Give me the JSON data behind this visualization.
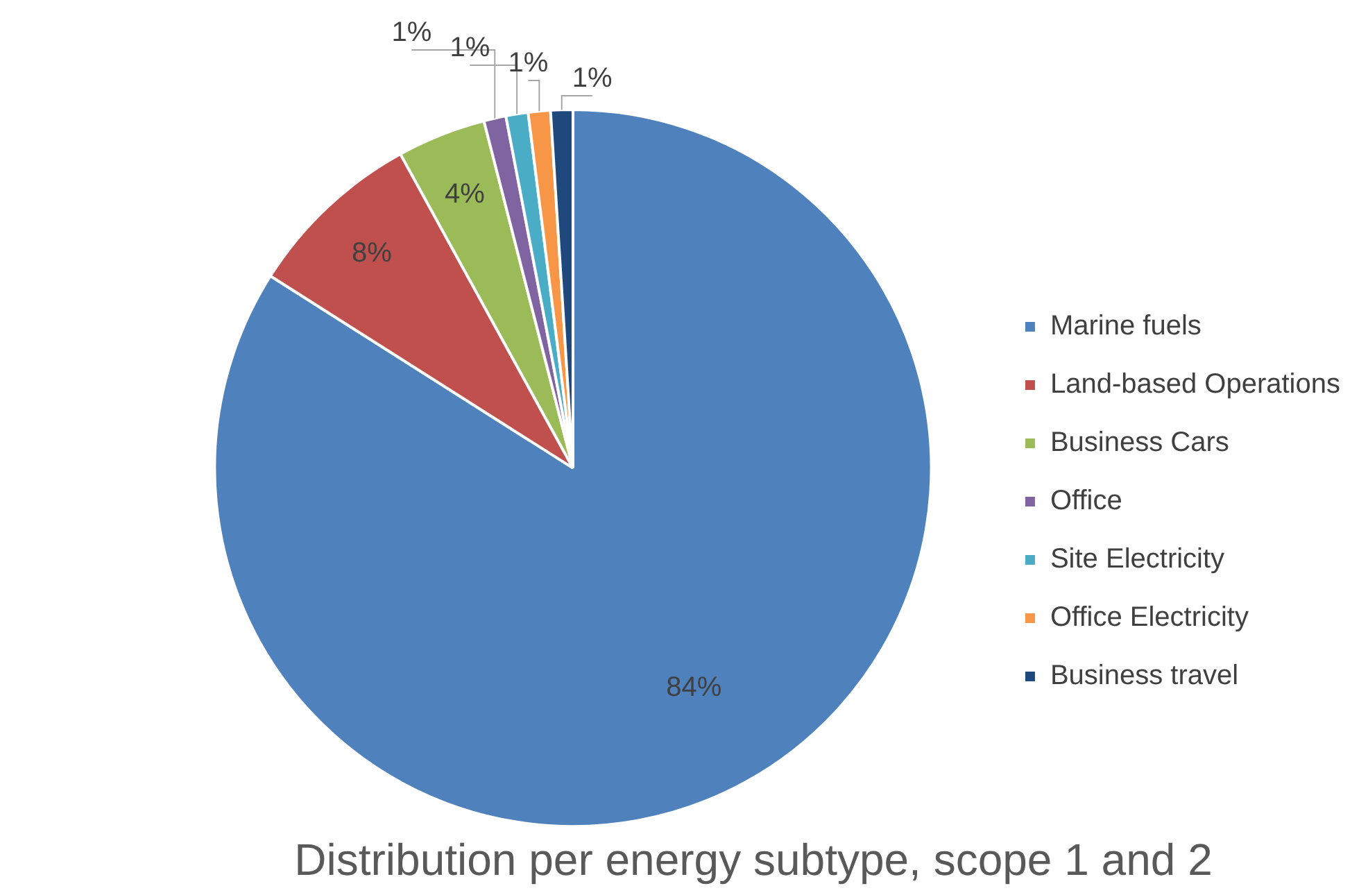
{
  "chart_data": {
    "type": "pie",
    "title": "Distribution per energy subtype, scope 1 and 2",
    "categories": [
      "Marine fuels",
      "Land-based Operations",
      "Business Cars",
      "Office",
      "Site Electricity",
      "Office Electricity",
      "Business travel"
    ],
    "values": [
      84,
      8,
      4,
      1,
      1,
      1,
      1
    ],
    "value_labels": [
      "84%",
      "8%",
      "4%",
      "1%",
      "1%",
      "1%",
      "1%"
    ],
    "colors": [
      "#4f81bd",
      "#c0504d",
      "#9bbb59",
      "#8064a2",
      "#4bacc6",
      "#f79646",
      "#1f497d"
    ],
    "legend": "right"
  }
}
